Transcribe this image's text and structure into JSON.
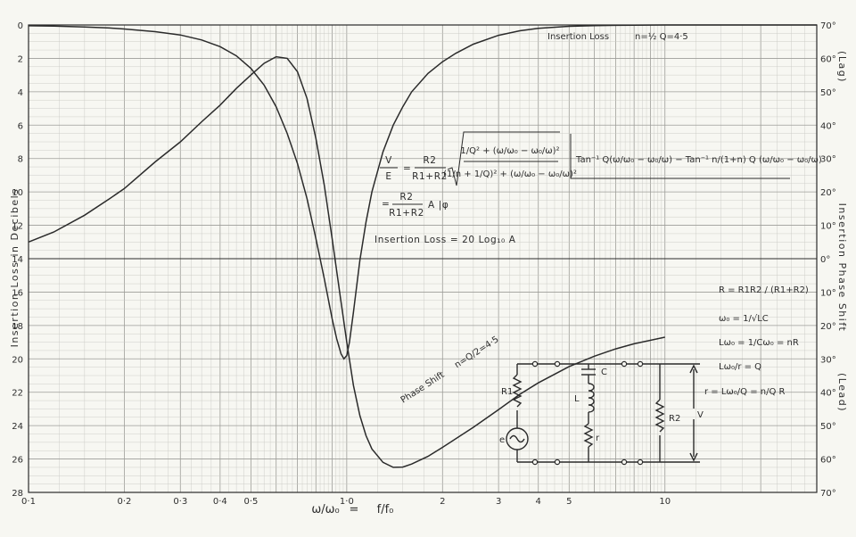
{
  "chart_data": {
    "type": "line",
    "x_scale": "log",
    "xlim": [
      0.1,
      30
    ],
    "ylim_left": [
      0,
      28
    ],
    "ylim_right": [
      70,
      -70
    ],
    "grid": true,
    "xlabel_left": "ω/ω₀",
    "xlabel_eq": "=",
    "xlabel_right": "f/f₀",
    "ylabel_left": "Insertion Loss in Decibels",
    "ylabel_right_lag": "(Lag)",
    "ylabel_right_mid": "Insertion Phase Shift",
    "ylabel_right_lead": "(Lead)",
    "x_tick_labels": [
      {
        "x": 0.1,
        "label": "0·1"
      },
      {
        "x": 0.2,
        "label": "0·2"
      },
      {
        "x": 0.3,
        "label": "0·3"
      },
      {
        "x": 0.4,
        "label": "0·4"
      },
      {
        "x": 0.5,
        "label": "0·5"
      },
      {
        "x": 1.0,
        "label": "1·0"
      },
      {
        "x": 2,
        "label": "2"
      },
      {
        "x": 3,
        "label": "3"
      },
      {
        "x": 4,
        "label": "4"
      },
      {
        "x": 5,
        "label": "5"
      },
      {
        "x": 10,
        "label": "10"
      }
    ],
    "left_ticks": [
      "0",
      "2",
      "4",
      "6",
      "8",
      "10",
      "12",
      "14",
      "16",
      "18",
      "20",
      "22",
      "24",
      "26",
      "28"
    ],
    "right_ticks": [
      "70°",
      "60°",
      "50°",
      "40°",
      "30°",
      "20°",
      "10°",
      "0°",
      "10°",
      "20°",
      "30°",
      "40°",
      "50°",
      "60°",
      "70°"
    ],
    "series": [
      {
        "name": "Insertion Loss",
        "curve_label": "Insertion Loss",
        "label_param": "n=½ Q=4·5",
        "x": [
          0.1,
          0.12,
          0.15,
          0.18,
          0.2,
          0.25,
          0.3,
          0.35,
          0.4,
          0.45,
          0.5,
          0.55,
          0.6,
          0.65,
          0.7,
          0.75,
          0.8,
          0.85,
          0.9,
          0.93,
          0.96,
          0.98,
          1.0,
          1.02,
          1.05,
          1.08,
          1.1,
          1.15,
          1.2,
          1.3,
          1.4,
          1.5,
          1.6,
          1.8,
          2.0,
          2.2,
          2.5,
          3.0,
          3.5,
          4.0,
          5.0,
          6.0,
          7.0,
          8.0,
          10,
          15,
          20,
          30
        ],
        "y": [
          0.05,
          0.07,
          0.12,
          0.18,
          0.24,
          0.4,
          0.6,
          0.9,
          1.3,
          1.85,
          2.6,
          3.6,
          4.9,
          6.5,
          8.3,
          10.4,
          12.8,
          15.2,
          17.6,
          18.8,
          19.7,
          20.0,
          19.8,
          19.0,
          17.2,
          15.3,
          14.1,
          11.8,
          10.0,
          7.6,
          6.0,
          4.9,
          4.0,
          2.9,
          2.2,
          1.7,
          1.15,
          0.62,
          0.35,
          0.2,
          0.08,
          0.04,
          0.02,
          0.01,
          0.0,
          0.0,
          0.0,
          0.0
        ]
      },
      {
        "name": "Phase Shift",
        "curve_label": "Phase Shift",
        "label_param": "n=Q/2=4·5",
        "x": [
          0.1,
          0.12,
          0.15,
          0.18,
          0.2,
          0.25,
          0.3,
          0.35,
          0.4,
          0.45,
          0.5,
          0.55,
          0.6,
          0.65,
          0.7,
          0.75,
          0.8,
          0.85,
          0.9,
          0.95,
          1.0,
          1.05,
          1.1,
          1.15,
          1.2,
          1.3,
          1.4,
          1.5,
          1.6,
          1.8,
          2.0,
          2.5,
          3.0,
          3.5,
          4.0,
          5.0,
          6.0,
          7.0,
          8.0,
          10.0
        ],
        "y": [
          5,
          8,
          13,
          18,
          21,
          29,
          35,
          41,
          46,
          51,
          55,
          58.5,
          60.5,
          60,
          56,
          48,
          36,
          22,
          6,
          -10,
          -25,
          -38,
          -47,
          -53,
          -57,
          -61,
          -62.5,
          -62.4,
          -61.5,
          -59.2,
          -56.5,
          -50.5,
          -45.2,
          -40.6,
          -37.2,
          -32.3,
          -29.2,
          -27,
          -25.5,
          -23.5
        ]
      }
    ],
    "annotations": {
      "eq1_lhs_num": "V",
      "eq1_lhs_den": "E",
      "eq1_eq": "=",
      "eq1_frac_num": "R2",
      "eq1_frac_den": "R1+R2",
      "eq1_sqrt_num": "1/Q² + (ω/ω₀ − ω₀/ω)²",
      "eq1_sqrt_den": "(1/n + 1/Q)² + (ω/ω₀ − ω₀/ω)²",
      "eq1_angle": "Tan⁻¹ Q(ω/ω₀ − ω₀/ω) − Tan⁻¹ n/(1+n) Q (ω/ω₀ − ω₀/ω)",
      "eq2_eq": "=",
      "eq2_frac_num": "R2",
      "eq2_frac_den": "R1+R2",
      "eq2_rest": "A |φ",
      "eq3": "Insertion Loss = 20 Log₁₀ A",
      "def1": "R = R1R2 / (R1+R2)",
      "def2": "ω₀ = 1/√LC",
      "def3": "Lω₀ = 1/Cω₀ = nR",
      "def4": "Lω₀/r = Q",
      "def5": "r = Lω₀/Q = n/Q R"
    },
    "circuit": {
      "r1": "R1",
      "r2": "R2",
      "l": "L",
      "c": "C",
      "r": "r",
      "e": "e",
      "v": "V"
    },
    "colors": {
      "paper": "#f7f7f2",
      "grid_minor": "#c9c9c4",
      "grid_major": "#9d9d98",
      "ink": "#2b2b2b"
    }
  }
}
